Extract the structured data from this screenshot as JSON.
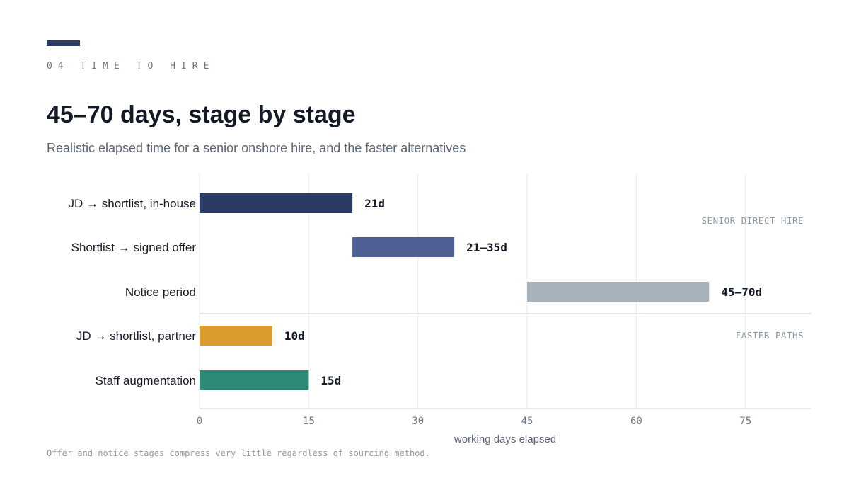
{
  "header": {
    "eyebrow": "04 TIME TO HIRE",
    "title": "45–70 days, stage by stage",
    "subtitle": "Realistic elapsed time for a senior onshore hire, and the faster alternatives",
    "accent_color": "#2c3a66"
  },
  "footnote": "Offer and notice stages compress very little regardless of sourcing method.",
  "chart_data": {
    "type": "bar",
    "orientation": "horizontal-range",
    "xlabel": "working days elapsed",
    "xlim": [
      0,
      84
    ],
    "xticks": [
      0,
      15,
      30,
      45,
      60,
      75
    ],
    "grid": true,
    "groups": [
      {
        "label": "SENIOR DIRECT HIRE",
        "rows": [
          0,
          1,
          2
        ]
      },
      {
        "label": "FASTER PATHS",
        "rows": [
          3,
          4
        ]
      }
    ],
    "rows": [
      {
        "label": "JD → shortlist, in-house",
        "start": 0,
        "end": 21,
        "value_label": "21d",
        "color": "#2c3a66"
      },
      {
        "label": "Shortlist → signed offer",
        "start": 21,
        "end": 35,
        "value_label": "21–35d",
        "color": "#4d5f93"
      },
      {
        "label": "Notice period",
        "start": 45,
        "end": 70,
        "value_label": "45–70d",
        "color": "#a7b2bc"
      },
      {
        "label": "JD → shortlist, partner",
        "start": 0,
        "end": 10,
        "value_label": "10d",
        "color": "#dc9b2e"
      },
      {
        "label": "Staff augmentation",
        "start": 0,
        "end": 15,
        "value_label": "15d",
        "color": "#2e8a78"
      }
    ]
  }
}
